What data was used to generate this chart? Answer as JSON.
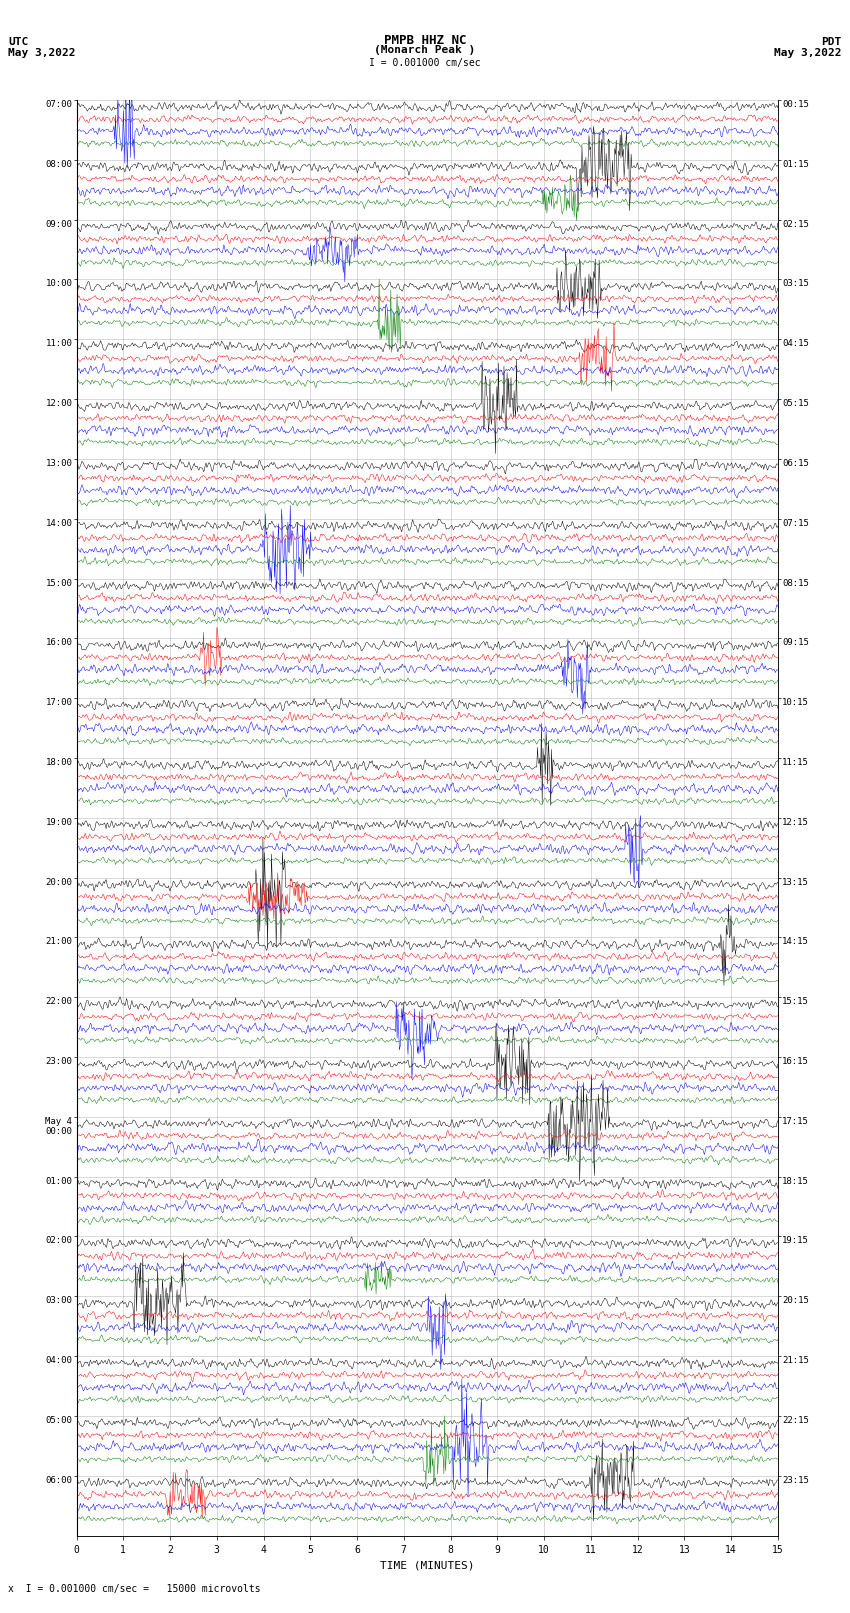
{
  "title_line1": "PMPB HHZ NC",
  "title_line2": "(Monarch Peak )",
  "scale_label": "I = 0.001000 cm/sec",
  "bottom_note": "x  I = 0.001000 cm/sec =   15000 microvolts",
  "utc_label": "UTC",
  "utc_date": "May 3,2022",
  "pdt_label": "PDT",
  "pdt_date": "May 3,2022",
  "xlabel": "TIME (MINUTES)",
  "left_times": [
    "07:00",
    "08:00",
    "09:00",
    "10:00",
    "11:00",
    "12:00",
    "13:00",
    "14:00",
    "15:00",
    "16:00",
    "17:00",
    "18:00",
    "19:00",
    "20:00",
    "21:00",
    "22:00",
    "23:00",
    "May 4\n00:00",
    "01:00",
    "02:00",
    "03:00",
    "04:00",
    "05:00",
    "06:00"
  ],
  "right_times": [
    "00:15",
    "01:15",
    "02:15",
    "03:15",
    "04:15",
    "05:15",
    "06:15",
    "07:15",
    "08:15",
    "09:15",
    "10:15",
    "11:15",
    "12:15",
    "13:15",
    "14:15",
    "15:15",
    "16:15",
    "17:15",
    "18:15",
    "19:15",
    "20:15",
    "21:15",
    "22:15",
    "23:15"
  ],
  "colors": [
    "black",
    "red",
    "blue",
    "green"
  ],
  "x_ticks": [
    0,
    1,
    2,
    3,
    4,
    5,
    6,
    7,
    8,
    9,
    10,
    11,
    12,
    13,
    14,
    15
  ],
  "bg_color": "white",
  "grid_color": "#aaaaaa",
  "amp_black": 0.09,
  "amp_red": 0.07,
  "amp_blue": 0.09,
  "amp_green": 0.06,
  "noise_seed": 42,
  "figwidth": 8.5,
  "figheight": 16.13,
  "n_hours": 24,
  "traces_per_hour": 4
}
